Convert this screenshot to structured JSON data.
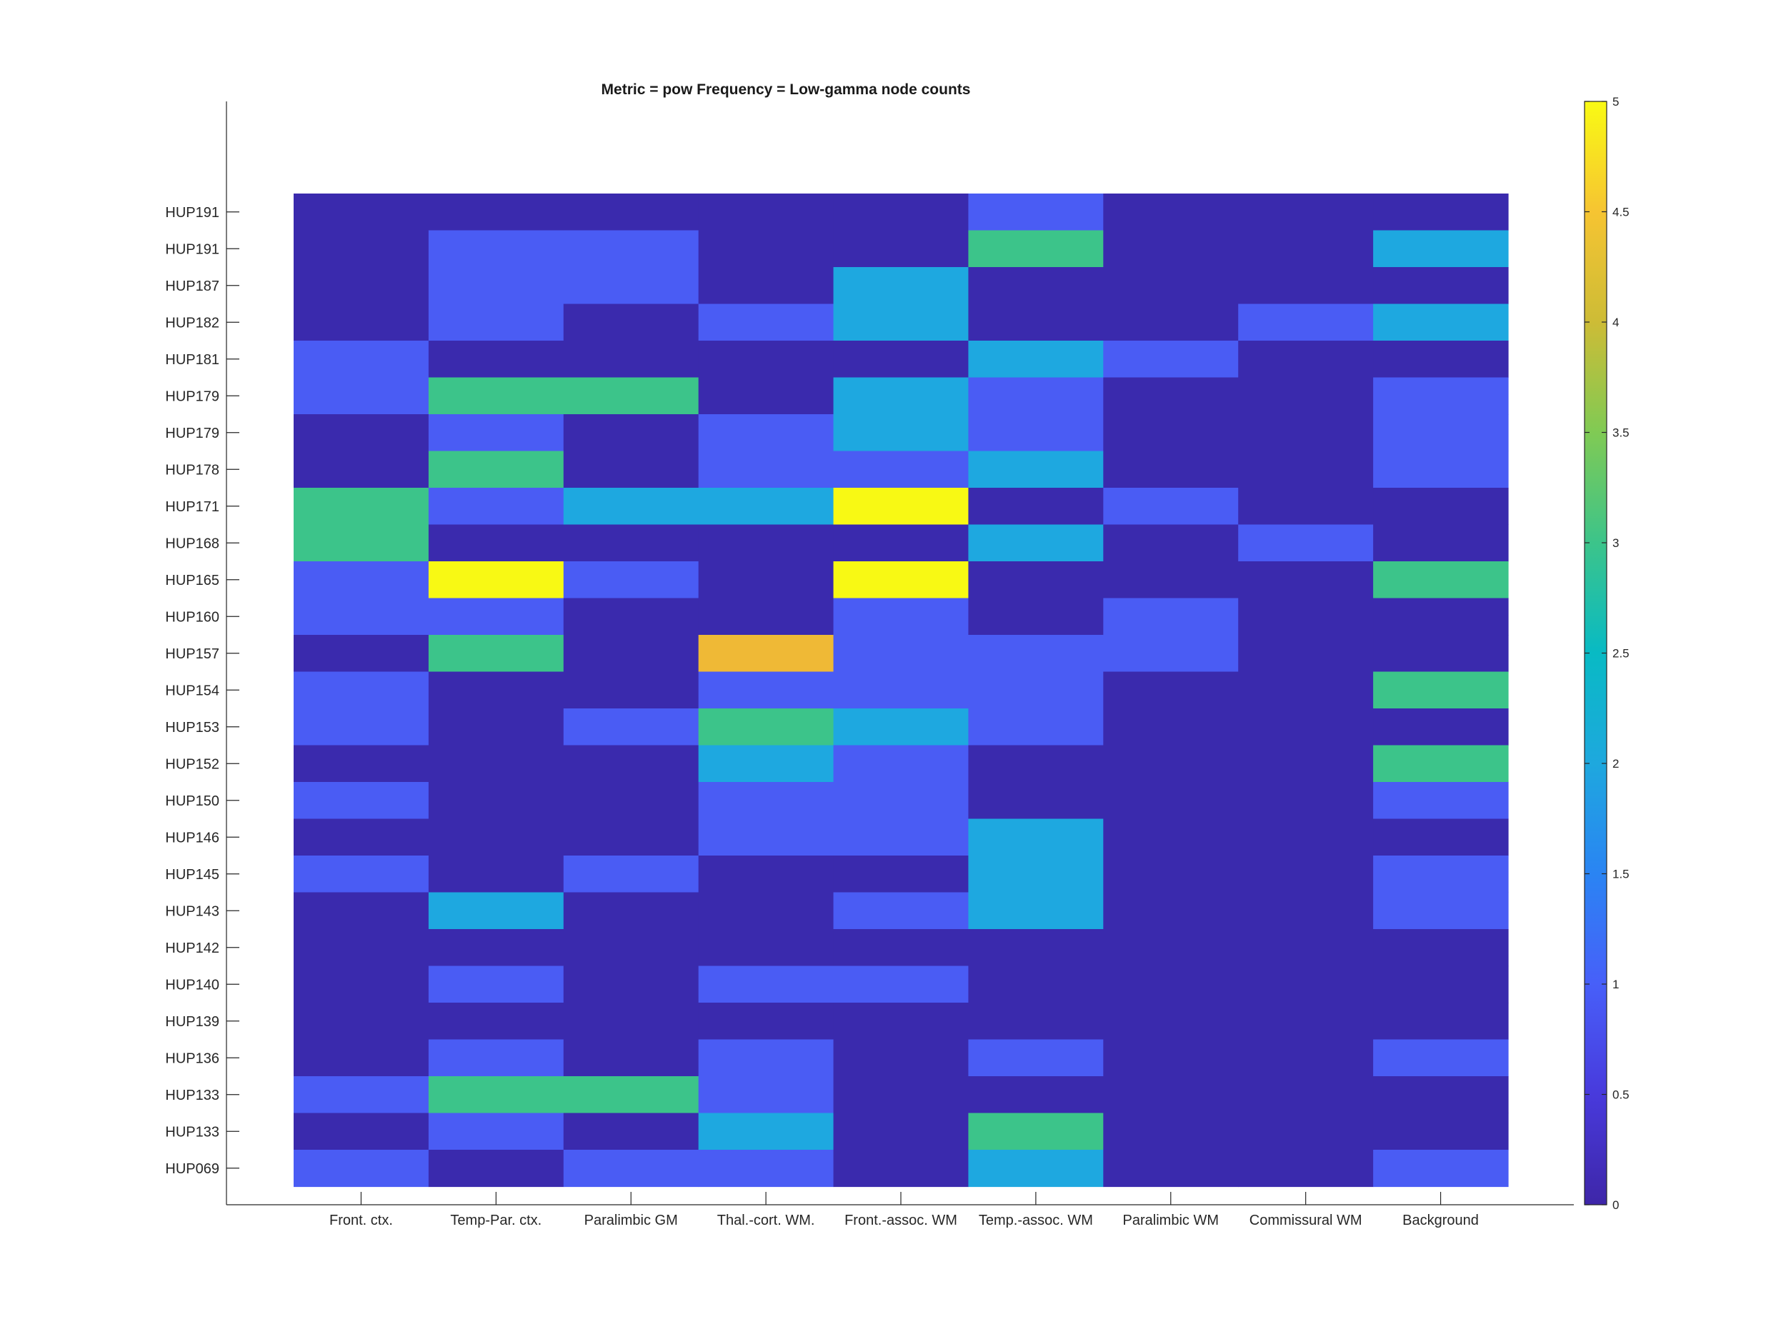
{
  "chart_data": {
    "type": "heatmap",
    "title": "Metric = pow Frequency = Low-gamma node counts",
    "xlabel": "",
    "ylabel": "",
    "columns": [
      "Front. ctx.",
      "Temp-Par. ctx.",
      "Paralimbic GM",
      "Thal.-cort. WM.",
      "Front.-assoc. WM",
      "Temp.-assoc. WM",
      "Paralimbic WM",
      "Commissural WM",
      "Background"
    ],
    "rows": [
      "HUP191",
      "HUP191",
      "HUP187",
      "HUP182",
      "HUP181",
      "HUP179",
      "HUP179",
      "HUP178",
      "HUP171",
      "HUP168",
      "HUP165",
      "HUP160",
      "HUP157",
      "HUP154",
      "HUP153",
      "HUP152",
      "HUP150",
      "HUP146",
      "HUP145",
      "HUP143",
      "HUP142",
      "HUP140",
      "HUP139",
      "HUP136",
      "HUP133",
      "HUP133",
      "HUP069"
    ],
    "values": [
      [
        0,
        0,
        0,
        0,
        0,
        1,
        0,
        0,
        0
      ],
      [
        0,
        1,
        1,
        0,
        0,
        3,
        0,
        0,
        2
      ],
      [
        0,
        1,
        1,
        0,
        2,
        0,
        0,
        0,
        0
      ],
      [
        0,
        1,
        0,
        1,
        2,
        0,
        0,
        1,
        2
      ],
      [
        1,
        0,
        0,
        0,
        0,
        2,
        1,
        0,
        0
      ],
      [
        1,
        3,
        3,
        0,
        2,
        1,
        0,
        0,
        1
      ],
      [
        0,
        1,
        0,
        1,
        2,
        1,
        0,
        0,
        1
      ],
      [
        0,
        3,
        0,
        1,
        1,
        2,
        0,
        0,
        1
      ],
      [
        3,
        1,
        2,
        2,
        5,
        0,
        1,
        0,
        0
      ],
      [
        3,
        0,
        0,
        0,
        0,
        2,
        0,
        1,
        0
      ],
      [
        1,
        5,
        1,
        0,
        5,
        0,
        0,
        0,
        3
      ],
      [
        1,
        1,
        0,
        0,
        1,
        0,
        1,
        0,
        0
      ],
      [
        0,
        3,
        0,
        4.5,
        1,
        1,
        1,
        0,
        0
      ],
      [
        1,
        0,
        0,
        1,
        1,
        1,
        0,
        0,
        3
      ],
      [
        1,
        0,
        1,
        3,
        2,
        1,
        0,
        0,
        0
      ],
      [
        0,
        0,
        0,
        2,
        1,
        0,
        0,
        0,
        3
      ],
      [
        1,
        0,
        0,
        1,
        1,
        0,
        0,
        0,
        1
      ],
      [
        0,
        0,
        0,
        1,
        1,
        2,
        0,
        0,
        0
      ],
      [
        1,
        0,
        1,
        0,
        0,
        2,
        0,
        0,
        1
      ],
      [
        0,
        2,
        0,
        0,
        1,
        2,
        0,
        0,
        1
      ],
      [
        0,
        0,
        0,
        0,
        0,
        0,
        0,
        0,
        0
      ],
      [
        0,
        1,
        0,
        1,
        1,
        0,
        0,
        0,
        0
      ],
      [
        0,
        0,
        0,
        0,
        0,
        0,
        0,
        0,
        0
      ],
      [
        0,
        1,
        0,
        1,
        0,
        1,
        0,
        0,
        1
      ],
      [
        1,
        3,
        3,
        1,
        0,
        0,
        0,
        0,
        0
      ],
      [
        0,
        1,
        0,
        2,
        0,
        3,
        0,
        0,
        0
      ],
      [
        1,
        0,
        1,
        1,
        0,
        2,
        0,
        0,
        1
      ]
    ],
    "colorbar": {
      "range": [
        0,
        5
      ],
      "ticks": [
        "0",
        "0.5",
        "1",
        "1.5",
        "2",
        "2.5",
        "3",
        "3.5",
        "4",
        "4.5",
        "5"
      ],
      "colormap": "parula"
    },
    "colors": {
      "v0": "#3a2aad",
      "v1": "#4a5cf4",
      "v2": "#1ea8e0",
      "v3": "#3cc48a",
      "v4.5": "#efb936",
      "v5": "#f8f914"
    }
  }
}
